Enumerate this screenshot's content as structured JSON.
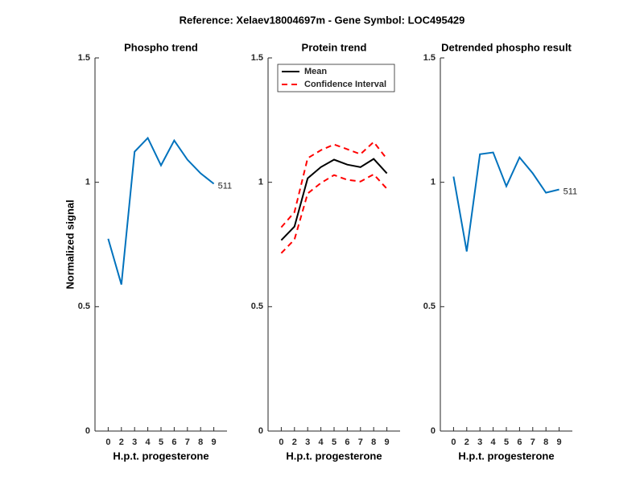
{
  "title": "Reference:  Xelaev18004697m - Gene Symbol:  LOC495429",
  "chart_data": [
    {
      "type": "line",
      "title": "Phospho trend",
      "xlabel": "H.p.t. progesterone",
      "ylabel": "Normalized signal",
      "categories": [
        "0",
        "2",
        "3",
        "4",
        "5",
        "6",
        "7",
        "8",
        "9"
      ],
      "series": [
        {
          "color": "#0072bd",
          "values": [
            0.773,
            0.589,
            1.123,
            1.178,
            1.068,
            1.168,
            1.091,
            1.036,
            0.994
          ],
          "end_label": "511"
        }
      ],
      "ylim": [
        0,
        1.5
      ],
      "yticks": [
        0,
        0.5,
        1,
        1.5
      ]
    },
    {
      "type": "line",
      "title": "Protein trend",
      "xlabel": "H.p.t. progesterone",
      "categories": [
        "0",
        "2",
        "3",
        "4",
        "5",
        "6",
        "7",
        "8",
        "9"
      ],
      "series": [
        {
          "name": "Mean",
          "color": "#000000",
          "values": [
            0.767,
            0.822,
            1.016,
            1.061,
            1.091,
            1.071,
            1.061,
            1.094,
            1.036
          ]
        },
        {
          "name": "Confidence Interval",
          "color": "#ff0000",
          "dashed": true,
          "upper": [
            0.819,
            0.88,
            1.097,
            1.129,
            1.152,
            1.133,
            1.113,
            1.162,
            1.094
          ],
          "lower": [
            0.715,
            0.77,
            0.955,
            0.997,
            1.029,
            1.01,
            1.003,
            1.032,
            0.974
          ]
        }
      ],
      "ylim": [
        0,
        1.5
      ],
      "yticks": [
        0,
        0.5,
        1,
        1.5
      ],
      "legend": "upper-left"
    },
    {
      "type": "line",
      "title": "Detrended phospho result",
      "xlabel": "H.p.t. progesterone",
      "categories": [
        "0",
        "2",
        "3",
        "4",
        "5",
        "6",
        "7",
        "8",
        "9"
      ],
      "series": [
        {
          "color": "#0072bd",
          "values": [
            1.023,
            0.722,
            1.113,
            1.12,
            0.984,
            1.1,
            1.036,
            0.958,
            0.971
          ],
          "end_label": "511"
        }
      ],
      "ylim": [
        0,
        1.5
      ],
      "yticks": [
        0,
        0.5,
        1,
        1.5
      ]
    }
  ]
}
